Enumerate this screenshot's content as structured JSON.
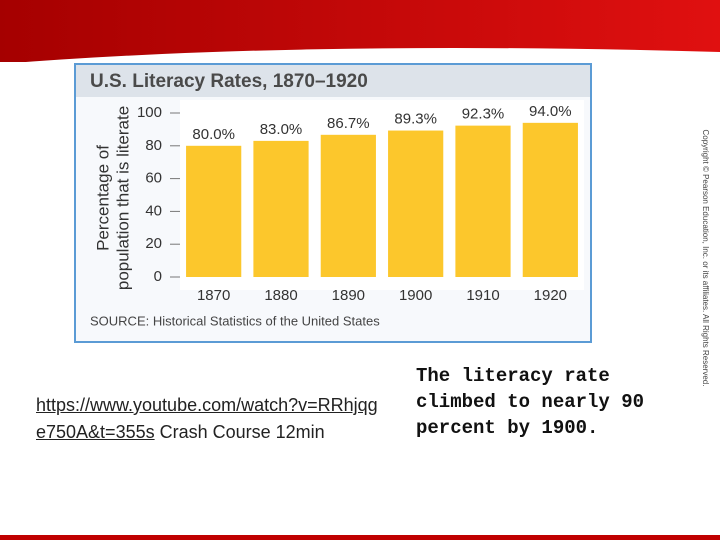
{
  "chart_data": {
    "type": "bar",
    "title": "U.S. Literacy Rates, 1870–1920",
    "y_label": [
      "Percentage of",
      "population that is literate"
    ],
    "categories": [
      "1870",
      "1880",
      "1890",
      "1900",
      "1910",
      "1920"
    ],
    "values": [
      80.0,
      83.0,
      86.7,
      89.3,
      92.3,
      94.0
    ],
    "value_labels": [
      "80.0%",
      "83.0%",
      "86.7%",
      "89.3%",
      "92.3%",
      "94.0%"
    ],
    "color": "#fcc72c",
    "ylim": [
      0,
      100
    ],
    "yticks": [
      0,
      20,
      40,
      60,
      80,
      100
    ],
    "grid": false,
    "source": "SOURCE: Historical Statistics of the United States"
  },
  "copyright": "Copyright © Pearson Education, Inc. or its affiliates. All Rights Reserved.",
  "link": {
    "url": "https://www.youtube.com/watch?v=RRhjqge750A&t=355s",
    "text": " Crash Course 12min"
  },
  "caption": "The literacy rate climbed to nearly 90 percent by 1900."
}
